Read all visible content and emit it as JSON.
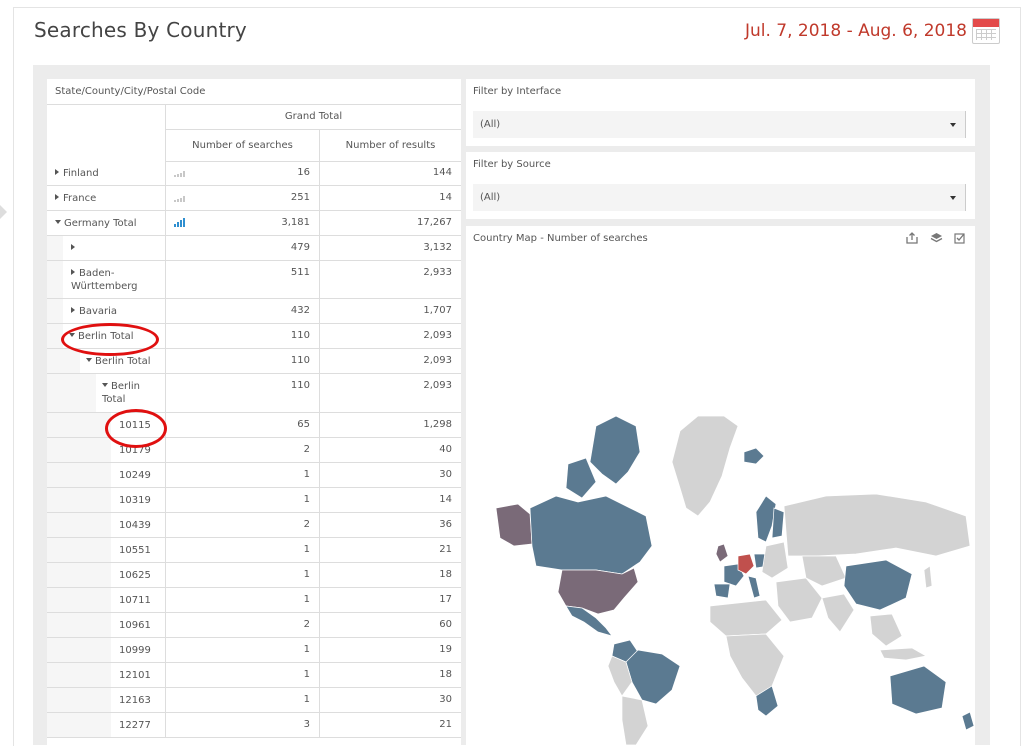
{
  "header": {
    "title": "Searches By Country",
    "date_range": "Jul. 7, 2018 - Aug. 6, 2018"
  },
  "pivot": {
    "row_header": "State/County/City/Postal Code",
    "grand_total": "Grand Total",
    "col_searches": "Number of searches",
    "col_results": "Number of results",
    "rows": [
      {
        "label": "Finland",
        "searches": "16",
        "results": "144"
      },
      {
        "label": "France",
        "searches": "251",
        "results": "14"
      },
      {
        "label": "Germany Total",
        "searches": "3,181",
        "results": "17,267"
      },
      {
        "label": "",
        "searches": "479",
        "results": "3,132"
      },
      {
        "label": "Baden-Württemberg",
        "searches": "511",
        "results": "2,933"
      },
      {
        "label": "Bavaria",
        "searches": "432",
        "results": "1,707"
      },
      {
        "label": "Berlin Total",
        "searches": "110",
        "results": "2,093"
      },
      {
        "label": "Berlin Total",
        "searches": "110",
        "results": "2,093"
      },
      {
        "label": "Berlin Total",
        "searches": "110",
        "results": "2,093"
      },
      {
        "label": "10115",
        "searches": "65",
        "results": "1,298"
      },
      {
        "label": "10179",
        "searches": "2",
        "results": "40"
      },
      {
        "label": "10249",
        "searches": "1",
        "results": "30"
      },
      {
        "label": "10319",
        "searches": "1",
        "results": "14"
      },
      {
        "label": "10439",
        "searches": "2",
        "results": "36"
      },
      {
        "label": "10551",
        "searches": "1",
        "results": "21"
      },
      {
        "label": "10625",
        "searches": "1",
        "results": "18"
      },
      {
        "label": "10711",
        "searches": "1",
        "results": "17"
      },
      {
        "label": "10961",
        "searches": "2",
        "results": "60"
      },
      {
        "label": "10999",
        "searches": "1",
        "results": "19"
      },
      {
        "label": "12101",
        "searches": "1",
        "results": "18"
      },
      {
        "label": "12163",
        "searches": "1",
        "results": "30"
      },
      {
        "label": "12277",
        "searches": "3",
        "results": "21"
      }
    ]
  },
  "filters": {
    "interface_label": "Filter by Interface",
    "interface_value": "(All)",
    "source_label": "Filter by Source",
    "source_value": "(All)"
  },
  "map": {
    "title": "Country Map - Number of searches",
    "colors": {
      "no_data": "#d3d3d3",
      "low": "#5b7a91",
      "mid": "#7a6a78",
      "high": "#c0504d"
    }
  },
  "icons": [
    "calendar-icon",
    "export-icon",
    "layers-icon",
    "checkbox-icon",
    "caret-down-icon",
    "expand-icon",
    "collapse-icon",
    "mini-bar-chart-icon"
  ]
}
